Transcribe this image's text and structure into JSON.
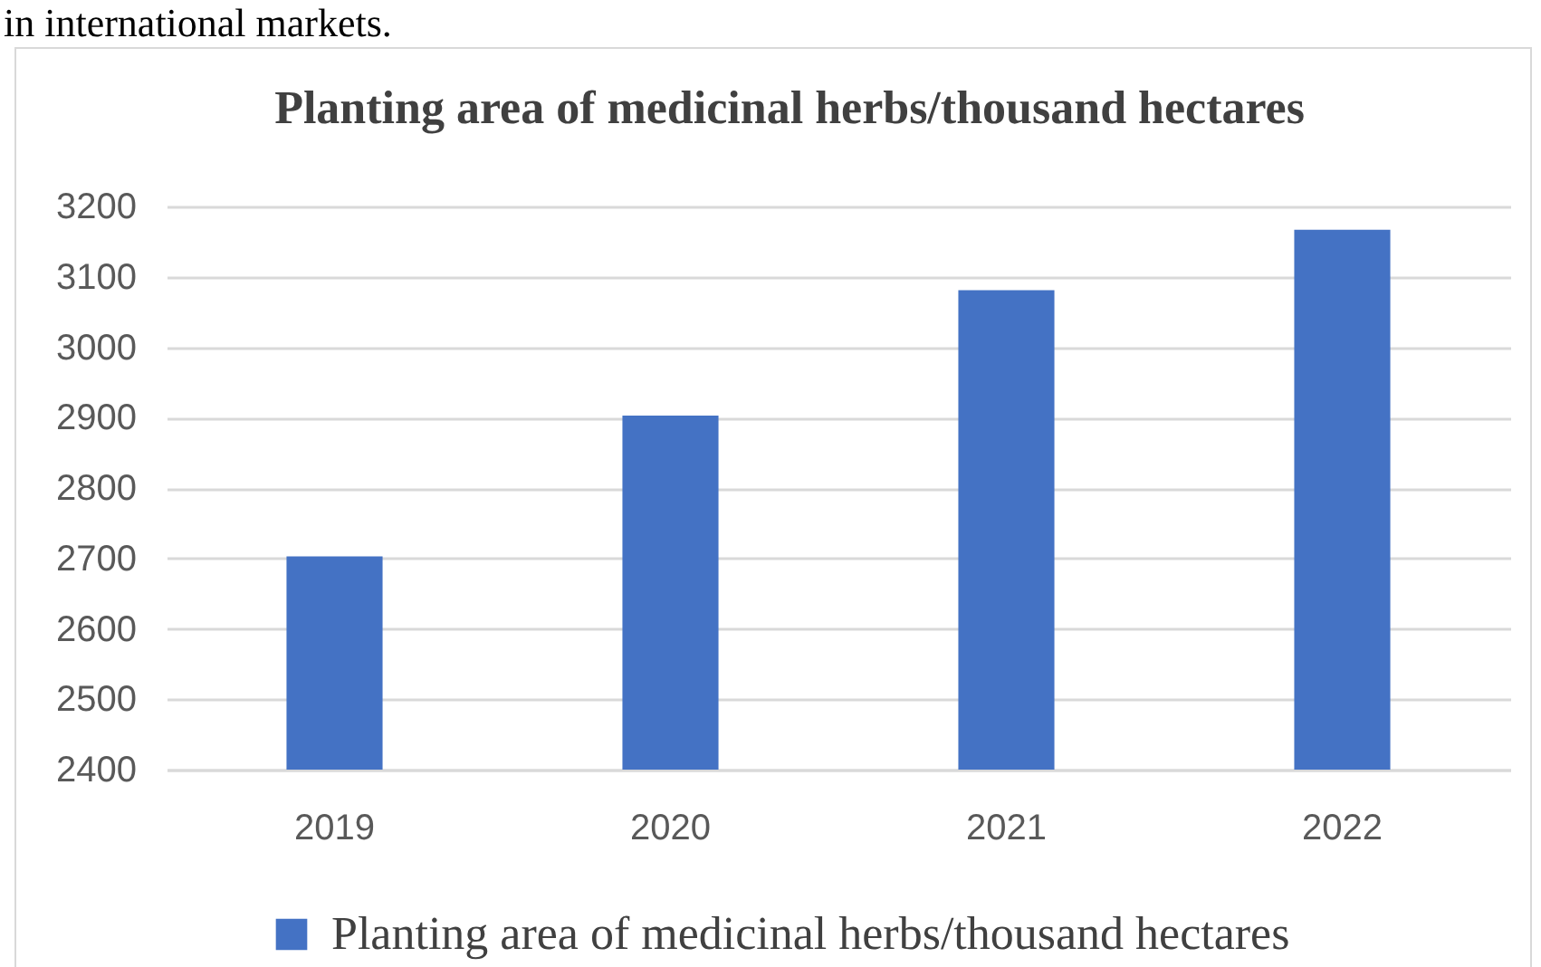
{
  "chart_data": {
    "type": "bar",
    "title": "Planting area of medicinal herbs/thousand hectares",
    "annotations": [
      "in international markets."
    ],
    "categories": [
      "2019",
      "2020",
      "2021",
      "2022"
    ],
    "series": [
      {
        "name": "Planting area of medicinal herbs/thousand hectares",
        "color": "#4472c4",
        "values": [
          2703,
          2903,
          3081,
          3167
        ]
      }
    ],
    "ylim": [
      2400,
      3200
    ],
    "yticks": [
      2400,
      2500,
      2600,
      2700,
      2800,
      2900,
      3000,
      3100,
      3200
    ],
    "grid": "y",
    "legend": "bottom"
  }
}
